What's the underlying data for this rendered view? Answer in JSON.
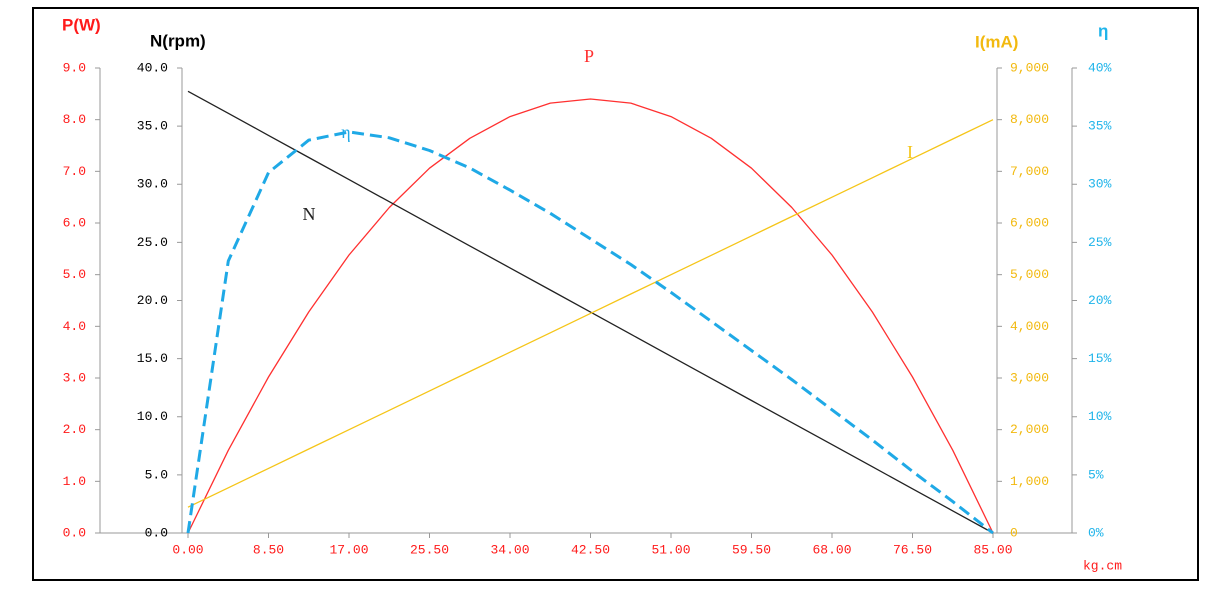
{
  "chart_data": {
    "type": "line",
    "x_title": "kg.cm",
    "x": [
      0,
      4.25,
      8.5,
      12.75,
      17,
      21.25,
      25.5,
      29.75,
      34,
      38.25,
      42.5,
      46.75,
      51,
      55.25,
      59.5,
      63.75,
      68,
      72.25,
      76.5,
      80.75,
      85
    ],
    "xlim": [
      0,
      85
    ],
    "xticks": [
      {
        "value": 0,
        "label": "0.00"
      },
      {
        "value": 8.5,
        "label": "8.50"
      },
      {
        "value": 17,
        "label": "17.00"
      },
      {
        "value": 25.5,
        "label": "25.50"
      },
      {
        "value": 34,
        "label": "34.00"
      },
      {
        "value": 42.5,
        "label": "42.50"
      },
      {
        "value": 51,
        "label": "51.00"
      },
      {
        "value": 59.5,
        "label": "59.50"
      },
      {
        "value": 68,
        "label": "68.00"
      },
      {
        "value": 76.5,
        "label": "76.50"
      },
      {
        "value": 85,
        "label": "85.00"
      }
    ],
    "axes": [
      {
        "title": "P(W)",
        "color": "#ff1a1a",
        "ylim": [
          0,
          9
        ],
        "yticks": [
          {
            "value": 0,
            "label": "0.0"
          },
          {
            "value": 1,
            "label": "1.0"
          },
          {
            "value": 2,
            "label": "2.0"
          },
          {
            "value": 3,
            "label": "3.0"
          },
          {
            "value": 4,
            "label": "4.0"
          },
          {
            "value": 5,
            "label": "5.0"
          },
          {
            "value": 6,
            "label": "6.0"
          },
          {
            "value": 7,
            "label": "7.0"
          },
          {
            "value": 8,
            "label": "8.0"
          },
          {
            "value": 9,
            "label": "9.0"
          }
        ]
      },
      {
        "title": "N(rpm)",
        "color": "#000000",
        "ylim": [
          0,
          40
        ],
        "yticks": [
          {
            "value": 0,
            "label": "0.0"
          },
          {
            "value": 5,
            "label": "5.0"
          },
          {
            "value": 10,
            "label": "10.0"
          },
          {
            "value": 15,
            "label": "15.0"
          },
          {
            "value": 20,
            "label": "20.0"
          },
          {
            "value": 25,
            "label": "25.0"
          },
          {
            "value": 30,
            "label": "30.0"
          },
          {
            "value": 35,
            "label": "35.0"
          },
          {
            "value": 40,
            "label": "40.0"
          }
        ]
      },
      {
        "title": "I(mA)",
        "color": "#f2b90f",
        "ylim": [
          0,
          9000
        ],
        "yticks": [
          0,
          {
            "value": 1000,
            "label": "1,000"
          },
          {
            "value": 2000,
            "label": "2,000"
          },
          {
            "value": 3000,
            "label": "3,000"
          },
          {
            "value": 4000,
            "label": "4,000"
          },
          {
            "value": 5000,
            "label": "5,000"
          },
          {
            "value": 6000,
            "label": "6,000"
          },
          {
            "value": 7000,
            "label": "7,000"
          },
          {
            "value": 8000,
            "label": "8,000"
          },
          {
            "value": 9000,
            "label": "9,000"
          }
        ]
      },
      {
        "title": "η",
        "color": "#1fb4ea",
        "ylim": [
          0,
          40
        ],
        "yticks": [
          {
            "value": 0,
            "label": "0%"
          },
          {
            "value": 5,
            "label": "5%"
          },
          {
            "value": 10,
            "label": "10%"
          },
          {
            "value": 15,
            "label": "15%"
          },
          {
            "value": 20,
            "label": "20%"
          },
          {
            "value": 25,
            "label": "25%"
          },
          {
            "value": 30,
            "label": "30%"
          },
          {
            "value": 35,
            "label": "35%"
          },
          {
            "value": 40,
            "label": "40%"
          }
        ]
      }
    ],
    "series": [
      {
        "name": "P",
        "axis": 0,
        "color": "#ff3030",
        "dashed": false,
        "values": [
          0,
          1.6,
          3.02,
          4.28,
          5.38,
          6.3,
          7.06,
          7.64,
          8.06,
          8.32,
          8.4,
          8.32,
          8.06,
          7.64,
          7.06,
          6.3,
          5.38,
          4.28,
          3.02,
          1.6,
          0
        ]
      },
      {
        "name": "N",
        "axis": 1,
        "color": "#222222",
        "dashed": false,
        "values": [
          38,
          36.1,
          34.2,
          32.3,
          30.4,
          28.5,
          26.6,
          24.7,
          22.8,
          20.9,
          19,
          17.1,
          15.2,
          13.3,
          11.4,
          9.5,
          7.6,
          5.7,
          3.8,
          1.9,
          0
        ]
      },
      {
        "name": "I",
        "axis": 2,
        "color": "#f5c518",
        "dashed": false,
        "values": [
          500,
          875,
          1250,
          1625,
          2000,
          2375,
          2750,
          3125,
          3500,
          3875,
          4250,
          4625,
          5000,
          5375,
          5750,
          6125,
          6500,
          6875,
          7250,
          7625,
          8000
        ]
      },
      {
        "name": "η",
        "axis": 3,
        "color": "#1fa9e6",
        "dashed": true,
        "values": [
          0,
          23.4,
          31,
          33.8,
          34.5,
          34,
          32.9,
          31.4,
          29.5,
          27.5,
          25.3,
          23.1,
          20.7,
          18.2,
          15.7,
          13.2,
          10.6,
          8,
          5.3,
          2.7,
          0
        ]
      }
    ]
  }
}
